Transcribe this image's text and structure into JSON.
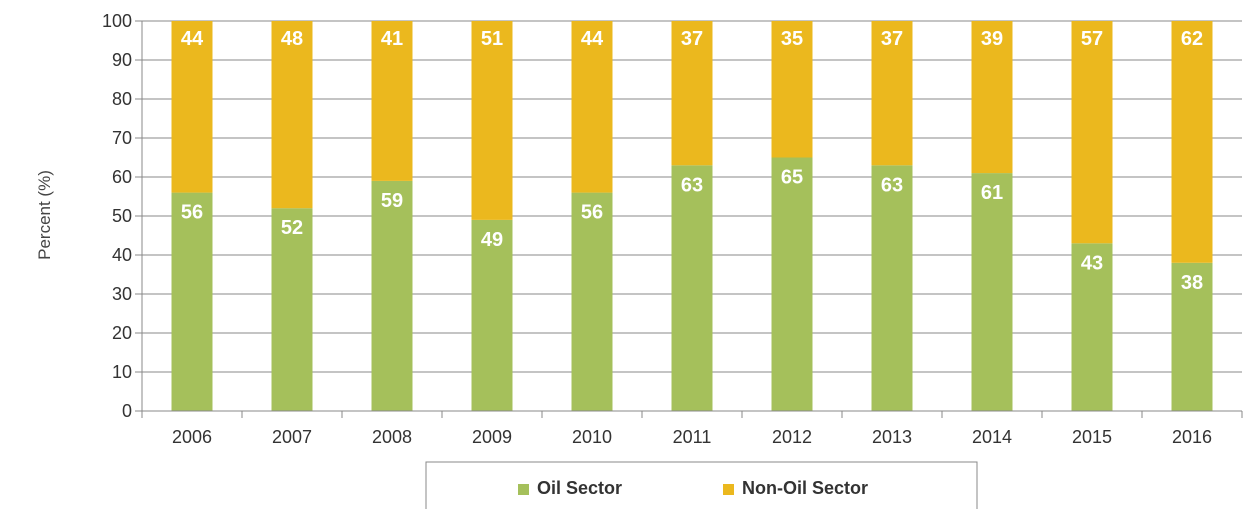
{
  "chart_data": {
    "type": "bar",
    "stacked": true,
    "categories": [
      "2006",
      "2007",
      "2008",
      "2009",
      "2010",
      "2011",
      "2012",
      "2013",
      "2014",
      "2015",
      "2016"
    ],
    "series": [
      {
        "name": "Oil Sector",
        "color": "#a5c05b",
        "values": [
          56,
          52,
          59,
          49,
          56,
          63,
          65,
          63,
          61,
          43,
          38
        ]
      },
      {
        "name": "Non-Oil Sector",
        "color": "#ebb81e",
        "values": [
          44,
          48,
          41,
          51,
          44,
          37,
          35,
          37,
          39,
          57,
          62
        ]
      }
    ],
    "ylabel": "Percent (%)",
    "xlabel": "",
    "ylim": [
      0,
      100
    ],
    "yticks": [
      0,
      10,
      20,
      30,
      40,
      50,
      60,
      70,
      80,
      90,
      100
    ],
    "grid": true,
    "legend_position": "bottom"
  }
}
